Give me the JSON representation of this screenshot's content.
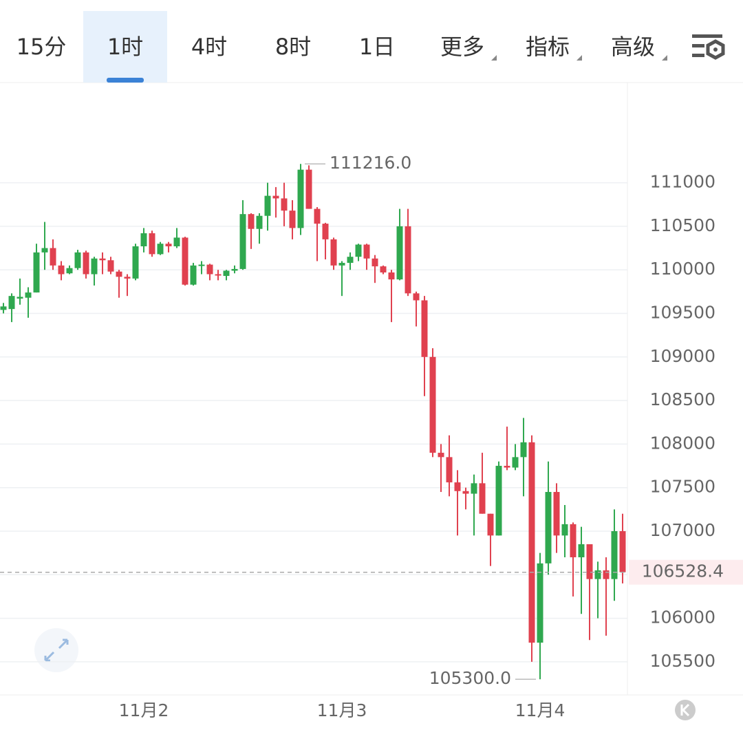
{
  "tabs": [
    "15分",
    "1时",
    "4时",
    "8时",
    "1日",
    "更多",
    "指标",
    "高级"
  ],
  "selected_tab": 1,
  "chart_data": {
    "type": "candlestick",
    "categories": [
      null,
      null,
      null,
      null,
      null,
      null,
      null,
      null,
      null,
      null,
      null,
      null,
      null,
      null,
      null,
      null,
      null,
      "11月2",
      null,
      null,
      null,
      null,
      null,
      null,
      null,
      null,
      null,
      null,
      null,
      null,
      null,
      null,
      null,
      null,
      null,
      null,
      null,
      null,
      null,
      null,
      null,
      "11月3",
      null,
      null,
      null,
      null,
      null,
      null,
      null,
      null,
      null,
      null,
      null,
      null,
      null,
      null,
      null,
      null,
      null,
      null,
      null,
      null,
      null,
      null,
      null,
      "11月4",
      null,
      null,
      null,
      null,
      null,
      null,
      null,
      null,
      null,
      null
    ],
    "open": [
      109540,
      109550,
      109670,
      109680,
      109740,
      110200,
      110250,
      110050,
      109960,
      110020,
      110200,
      109950,
      110130,
      110110,
      109980,
      109920,
      109900,
      110270,
      110420,
      110180,
      110300,
      110270,
      110370,
      109830,
      110050,
      110060,
      109950,
      109930,
      109990,
      110010,
      110640,
      110470,
      110620,
      110850,
      110820,
      110680,
      110480,
      111150,
      110700,
      110530,
      110350,
      110050,
      110080,
      110150,
      110290,
      110130,
      110040,
      109970,
      109890,
      110500,
      109730,
      109650,
      109000,
      107900,
      107850,
      107560,
      107460,
      107430,
      107550,
      107200,
      106950,
      107750,
      107730,
      107850,
      108020,
      105720,
      106630,
      107450,
      106950,
      107080,
      106700,
      106850,
      106450,
      106550,
      106450,
      107000
    ],
    "high": [
      109620,
      109730,
      109900,
      109800,
      110300,
      110550,
      110350,
      110100,
      110050,
      110230,
      110220,
      110150,
      110200,
      110150,
      110000,
      109950,
      110300,
      110480,
      110450,
      110320,
      110320,
      110480,
      110380,
      110080,
      110100,
      110070,
      110000,
      110000,
      110050,
      110800,
      110650,
      110650,
      111000,
      110950,
      111000,
      110800,
      111216,
      111200,
      110720,
      110540,
      110370,
      110100,
      110200,
      110300,
      110300,
      110170,
      110050,
      110000,
      110700,
      110700,
      109750,
      109700,
      109100,
      108000,
      108100,
      107700,
      107500,
      107650,
      107900,
      107200,
      107800,
      108200,
      108000,
      108300,
      108100,
      106750,
      107800,
      107550,
      107300,
      107100,
      107050,
      106850,
      106650,
      106700,
      107250,
      107200
    ],
    "low": [
      109500,
      109400,
      109600,
      109450,
      109740,
      110000,
      110000,
      109880,
      109950,
      110000,
      109900,
      109820,
      109950,
      109950,
      109680,
      109700,
      109880,
      110200,
      110150,
      110170,
      110200,
      110250,
      109820,
      109820,
      109950,
      109880,
      109880,
      109880,
      109960,
      110000,
      110240,
      110300,
      110450,
      110600,
      110500,
      110350,
      110400,
      110700,
      110100,
      110120,
      110000,
      109700,
      110000,
      110100,
      110000,
      109850,
      109950,
      109400,
      109880,
      109700,
      109350,
      108550,
      107850,
      107450,
      107400,
      106950,
      107250,
      106950,
      107200,
      106600,
      106950,
      107700,
      107700,
      107400,
      105500,
      105300,
      106500,
      106750,
      106700,
      106250,
      106050,
      105750,
      106000,
      105800,
      106200,
      106400
    ],
    "close": [
      109580,
      109700,
      109690,
      109740,
      110200,
      110250,
      110050,
      109950,
      110020,
      110200,
      109950,
      110130,
      110110,
      109980,
      109920,
      109900,
      110270,
      110420,
      110180,
      110300,
      110270,
      110370,
      109830,
      110050,
      110060,
      109950,
      109940,
      109990,
      110010,
      110640,
      110470,
      110620,
      110850,
      110820,
      110680,
      110480,
      111150,
      110700,
      110530,
      110350,
      110050,
      110080,
      110150,
      110290,
      110130,
      110040,
      109970,
      109890,
      110500,
      109730,
      109650,
      109000,
      107900,
      107850,
      107560,
      107460,
      107430,
      107550,
      107200,
      106950,
      107750,
      107730,
      107850,
      108020,
      105720,
      106630,
      107450,
      106950,
      107080,
      106700,
      106850,
      106450,
      106550,
      106450,
      107000,
      106528.4
    ],
    "up_color": "#2fa84f",
    "down_color": "#e0414f",
    "ylim": [
      105120,
      112150
    ],
    "yticks": [
      105500,
      106000,
      106500,
      107000,
      107500,
      108000,
      108500,
      109000,
      109500,
      110000,
      110500,
      111000
    ],
    "grid": true,
    "high_label": {
      "value": 111216,
      "label": "111216.0"
    },
    "low_label": {
      "value": 105300,
      "label": "105300.0"
    },
    "last_price": 106528.4
  }
}
